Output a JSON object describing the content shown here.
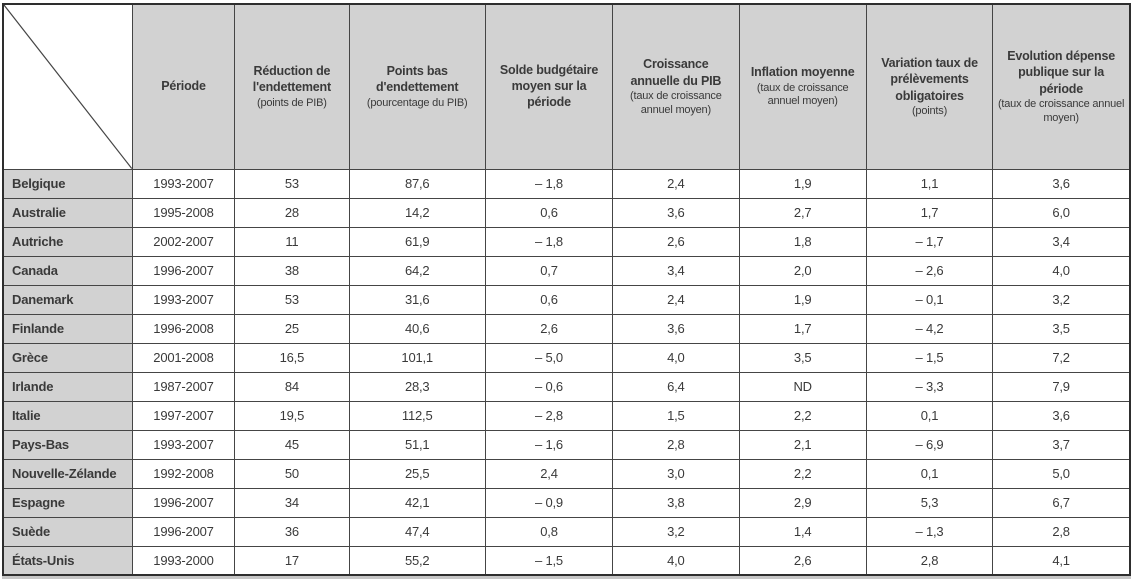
{
  "colors": {
    "header_bg": "#d2d2d2",
    "row_label_bg": "#d2d2d2",
    "cell_bg": "#ffffff",
    "grid": "#454545",
    "text": "#3a3a3a"
  },
  "table": {
    "corner_label": "",
    "columns": [
      {
        "title": "Période",
        "sub": ""
      },
      {
        "title": "Réduction de l'endettement",
        "sub": "(points de PIB)"
      },
      {
        "title": "Points bas d'endettement",
        "sub": "(pourcentage du PIB)"
      },
      {
        "title": "Solde budgétaire moyen sur la période",
        "sub": ""
      },
      {
        "title": "Croissance annuelle du PIB",
        "sub": "(taux de croissance annuel moyen)"
      },
      {
        "title": "Inflation moyenne",
        "sub": "(taux de croissance annuel moyen)"
      },
      {
        "title": "Variation taux de prélèvements obligatoires",
        "sub": "(points)"
      },
      {
        "title": "Evolution dépense publique sur la période",
        "sub": "(taux de croissance annuel moyen)"
      }
    ],
    "rows": [
      {
        "country": "Belgique",
        "values": [
          "1993-2007",
          "53",
          "87,6",
          "– 1,8",
          "2,4",
          "1,9",
          "1,1",
          "3,6"
        ]
      },
      {
        "country": "Australie",
        "values": [
          "1995-2008",
          "28",
          "14,2",
          "0,6",
          "3,6",
          "2,7",
          "1,7",
          "6,0"
        ]
      },
      {
        "country": "Autriche",
        "values": [
          "2002-2007",
          "11",
          "61,9",
          "– 1,8",
          "2,6",
          "1,8",
          "– 1,7",
          "3,4"
        ]
      },
      {
        "country": "Canada",
        "values": [
          "1996-2007",
          "38",
          "64,2",
          "0,7",
          "3,4",
          "2,0",
          "– 2,6",
          "4,0"
        ]
      },
      {
        "country": "Danemark",
        "values": [
          "1993-2007",
          "53",
          "31,6",
          "0,6",
          "2,4",
          "1,9",
          "– 0,1",
          "3,2"
        ]
      },
      {
        "country": "Finlande",
        "values": [
          "1996-2008",
          "25",
          "40,6",
          "2,6",
          "3,6",
          "1,7",
          "– 4,2",
          "3,5"
        ]
      },
      {
        "country": "Grèce",
        "values": [
          "2001-2008",
          "16,5",
          "101,1",
          "– 5,0",
          "4,0",
          "3,5",
          "– 1,5",
          "7,2"
        ]
      },
      {
        "country": "Irlande",
        "values": [
          "1987-2007",
          "84",
          "28,3",
          "– 0,6",
          "6,4",
          "ND",
          "– 3,3",
          "7,9"
        ]
      },
      {
        "country": "Italie",
        "values": [
          "1997-2007",
          "19,5",
          "112,5",
          "– 2,8",
          "1,5",
          "2,2",
          "0,1",
          "3,6"
        ]
      },
      {
        "country": "Pays-Bas",
        "values": [
          "1993-2007",
          "45",
          "51,1",
          "– 1,6",
          "2,8",
          "2,1",
          "– 6,9",
          "3,7"
        ]
      },
      {
        "country": "Nouvelle-Zélande",
        "values": [
          "1992-2008",
          "50",
          "25,5",
          "2,4",
          "3,0",
          "2,2",
          "0,1",
          "5,0"
        ]
      },
      {
        "country": "Espagne",
        "values": [
          "1996-2007",
          "34",
          "42,1",
          "– 0,9",
          "3,8",
          "2,9",
          "5,3",
          "6,7"
        ]
      },
      {
        "country": "Suède",
        "values": [
          "1996-2007",
          "36",
          "47,4",
          "0,8",
          "3,2",
          "1,4",
          "– 1,3",
          "2,8"
        ]
      },
      {
        "country": "États-Unis",
        "values": [
          "1993-2000",
          "17",
          "55,2",
          "– 1,5",
          "4,0",
          "2,6",
          "2,8",
          "4,1"
        ]
      }
    ]
  }
}
